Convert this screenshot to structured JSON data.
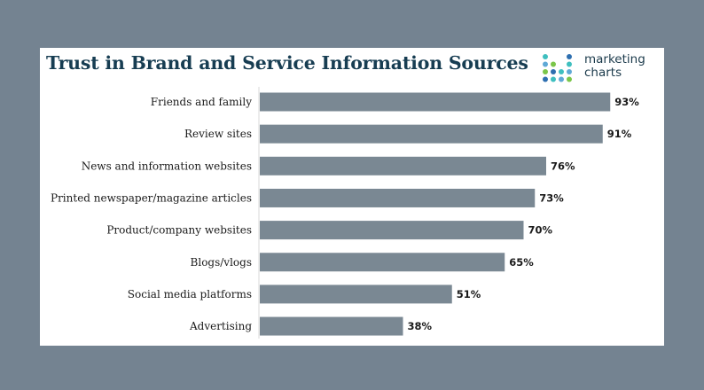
{
  "colors": {
    "background": "#748391",
    "card": "#ffffff",
    "title": "#173d52",
    "bar": "#7a8893",
    "logo_dots": [
      "#3fbfbf",
      "#5fa9d6",
      "#7bc64a",
      "#2e6fb0"
    ]
  },
  "logo": {
    "icon": "dot-grid-icon",
    "line1": "marketing",
    "line2": "charts"
  },
  "chart_data": {
    "type": "bar",
    "orientation": "horizontal",
    "title": "Trust in Brand and Service Information Sources",
    "categories": [
      "Friends and family",
      "Review sites",
      "News and information websites",
      "Printed newspaper/magazine articles",
      "Product/company websites",
      "Blogs/vlogs",
      "Social media platforms",
      "Advertising"
    ],
    "values": [
      93,
      91,
      76,
      73,
      70,
      65,
      51,
      38
    ],
    "value_labels": [
      "93%",
      "91%",
      "76%",
      "73%",
      "70%",
      "65%",
      "51%",
      "38%"
    ],
    "xlim": [
      0,
      100
    ],
    "grid": false,
    "legend": "none"
  }
}
